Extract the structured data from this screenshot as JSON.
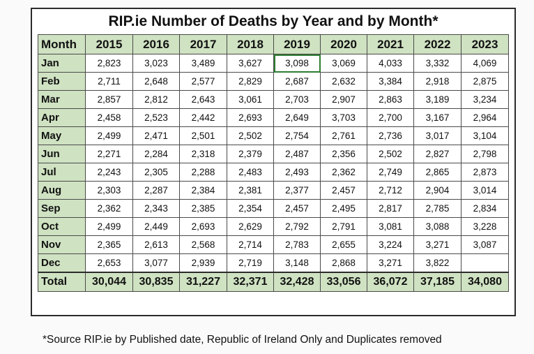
{
  "title": "RIP.ie Number of  Deaths by Year and by Month*",
  "footnote": "*Source RIP.ie by Published date, Republic of Ireland Only and Duplicates removed",
  "colors": {
    "header_fill": "#cfe2c2",
    "border": "#2b2b2b",
    "selection": "#2e7d32"
  },
  "chart_data": {
    "type": "table",
    "title": "RIP.ie Number of  Deaths by Year and by Month*",
    "row_header": "Month",
    "columns": [
      "2015",
      "2016",
      "2017",
      "2018",
      "2019",
      "2020",
      "2021",
      "2022",
      "2023"
    ],
    "rows": [
      {
        "label": "Jan",
        "values": [
          "2,823",
          "3,023",
          "3,489",
          "3,627",
          "3,098",
          "3,069",
          "4,033",
          "3,332",
          "4,069"
        ]
      },
      {
        "label": "Feb",
        "values": [
          "2,711",
          "2,648",
          "2,577",
          "2,829",
          "2,687",
          "2,632",
          "3,384",
          "2,918",
          "2,875"
        ]
      },
      {
        "label": "Mar",
        "values": [
          "2,857",
          "2,812",
          "2,643",
          "3,061",
          "2,703",
          "2,907",
          "2,863",
          "3,189",
          "3,234"
        ]
      },
      {
        "label": "Apr",
        "values": [
          "2,458",
          "2,523",
          "2,442",
          "2,693",
          "2,649",
          "3,703",
          "2,700",
          "3,167",
          "2,964"
        ]
      },
      {
        "label": "May",
        "values": [
          "2,499",
          "2,471",
          "2,501",
          "2,502",
          "2,754",
          "2,761",
          "2,736",
          "3,017",
          "3,104"
        ]
      },
      {
        "label": "Jun",
        "values": [
          "2,271",
          "2,284",
          "2,318",
          "2,379",
          "2,487",
          "2,356",
          "2,502",
          "2,827",
          "2,798"
        ]
      },
      {
        "label": "Jul",
        "values": [
          "2,243",
          "2,305",
          "2,288",
          "2,483",
          "2,493",
          "2,362",
          "2,749",
          "2,865",
          "2,873"
        ]
      },
      {
        "label": "Aug",
        "values": [
          "2,303",
          "2,287",
          "2,384",
          "2,381",
          "2,377",
          "2,457",
          "2,712",
          "2,904",
          "3,014"
        ]
      },
      {
        "label": "Sep",
        "values": [
          "2,362",
          "2,343",
          "2,385",
          "2,354",
          "2,457",
          "2,495",
          "2,817",
          "2,785",
          "2,834"
        ]
      },
      {
        "label": "Oct",
        "values": [
          "2,499",
          "2,449",
          "2,693",
          "2,629",
          "2,792",
          "2,791",
          "3,081",
          "3,088",
          "3,228"
        ]
      },
      {
        "label": "Nov",
        "values": [
          "2,365",
          "2,613",
          "2,568",
          "2,714",
          "2,783",
          "2,655",
          "3,224",
          "3,271",
          "3,087"
        ]
      },
      {
        "label": "Dec",
        "values": [
          "2,653",
          "3,077",
          "2,939",
          "2,719",
          "3,148",
          "2,868",
          "3,271",
          "3,822",
          ""
        ]
      }
    ],
    "total": {
      "label": "Total",
      "values": [
        "30,044",
        "30,835",
        "31,227",
        "32,371",
        "32,428",
        "33,056",
        "36,072",
        "37,185",
        "34,080"
      ]
    },
    "selected_cell": {
      "row": "Jan",
      "column": "2019"
    }
  }
}
